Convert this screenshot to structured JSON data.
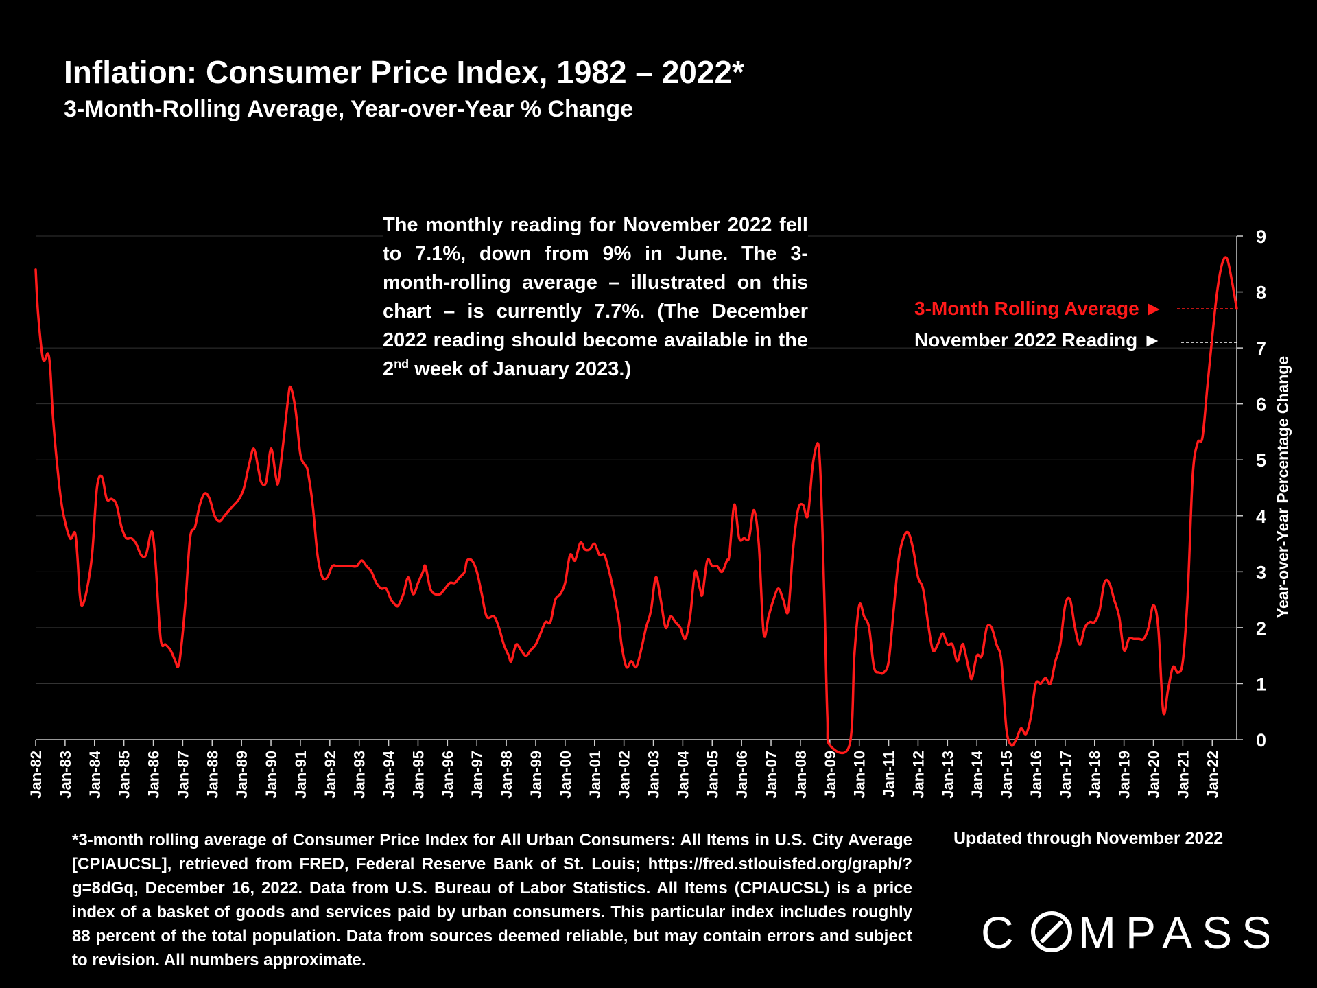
{
  "title": "Inflation: Consumer Price Index, 1982 – 2022*",
  "subtitle": "3-Month-Rolling Average, Year-over-Year % Change",
  "annotation": {
    "part1": "The monthly reading for November 2022 fell to 7.1%, down from 9% in June. The 3-month-rolling average – illustrated on this chart – is currently 7.7%. (The December 2022 reading should become available in the 2",
    "sup": "nd",
    "part2": " week of January 2023.)"
  },
  "legend": {
    "series_label": "3-Month Rolling Average ►",
    "reading_label": "November 2022 Reading ►"
  },
  "footnote": "*3-month rolling average of Consumer Price Index for All Urban Consumers: All Items in U.S. City Average [CPIAUCSL], retrieved from FRED, Federal Reserve Bank of St. Louis; https://fred.stlouisfed.org/graph/?g=8dGq, December 16, 2022. Data from U.S. Bureau of Labor Statistics. All Items (CPIAUCSL) is a price index of a basket of goods and services paid by urban consumers. This particular index includes roughly 88 percent of the total population. Data from sources deemed reliable, but may contain errors and subject to revision. All numbers approximate.",
  "updated": "Updated through November 2022",
  "logo_text": "COMPASS",
  "colors": {
    "series": "#ff1a1a",
    "background": "#000000",
    "text": "#ffffff",
    "grid": "#333333"
  },
  "chart_data": {
    "type": "line",
    "title": "Inflation: Consumer Price Index, 1982 – 2022*",
    "ylabel": "Year-over-Year Percentage Change",
    "xlabel": "",
    "ylim": [
      0,
      9
    ],
    "yticks": [
      "0",
      "1",
      "2",
      "3",
      "4",
      "5",
      "6",
      "7",
      "8",
      "9"
    ],
    "y_axis_side": "right",
    "grid": true,
    "x_start": "Jan-82",
    "x_end": "Nov-22",
    "x_ticks": [
      "Jan-82",
      "Jan-83",
      "Jan-84",
      "Jan-85",
      "Jan-86",
      "Jan-87",
      "Jan-88",
      "Jan-89",
      "Jan-90",
      "Jan-91",
      "Jan-92",
      "Jan-93",
      "Jan-94",
      "Jan-95",
      "Jan-96",
      "Jan-97",
      "Jan-98",
      "Jan-99",
      "Jan-00",
      "Jan-01",
      "Jan-02",
      "Jan-03",
      "Jan-04",
      "Jan-05",
      "Jan-06",
      "Jan-07",
      "Jan-08",
      "Jan-09",
      "Jan-10",
      "Jan-11",
      "Jan-12",
      "Jan-13",
      "Jan-14",
      "Jan-15",
      "Jan-16",
      "Jan-17",
      "Jan-18",
      "Jan-19",
      "Jan-20",
      "Jan-21",
      "Jan-22"
    ],
    "series": [
      {
        "name": "3-Month Rolling Average",
        "color": "#ff1a1a",
        "points": [
          [
            "Jan-82",
            8.4
          ],
          [
            "Feb-82",
            7.6
          ],
          [
            "Apr-82",
            6.8
          ],
          [
            "Jun-82",
            6.9
          ],
          [
            "Jul-82",
            6.6
          ],
          [
            "Aug-82",
            5.8
          ],
          [
            "Oct-82",
            4.8
          ],
          [
            "Dec-82",
            4.1
          ],
          [
            "Mar-83",
            3.6
          ],
          [
            "May-83",
            3.7
          ],
          [
            "Jun-83",
            3.3
          ],
          [
            "Jul-83",
            2.6
          ],
          [
            "Aug-83",
            2.4
          ],
          [
            "Oct-83",
            2.7
          ],
          [
            "Dec-83",
            3.3
          ],
          [
            "Feb-84",
            4.5
          ],
          [
            "Apr-84",
            4.7
          ],
          [
            "Jun-84",
            4.3
          ],
          [
            "Aug-84",
            4.3
          ],
          [
            "Oct-84",
            4.2
          ],
          [
            "Dec-84",
            3.8
          ],
          [
            "Feb-85",
            3.6
          ],
          [
            "Apr-85",
            3.6
          ],
          [
            "Jun-85",
            3.5
          ],
          [
            "Aug-85",
            3.3
          ],
          [
            "Oct-85",
            3.3
          ],
          [
            "Dec-85",
            3.7
          ],
          [
            "Jan-86",
            3.6
          ],
          [
            "Feb-86",
            3.1
          ],
          [
            "Apr-86",
            1.8
          ],
          [
            "Jun-86",
            1.7
          ],
          [
            "Aug-86",
            1.6
          ],
          [
            "Oct-86",
            1.4
          ],
          [
            "Nov-86",
            1.3
          ],
          [
            "Dec-86",
            1.5
          ],
          [
            "Feb-87",
            2.4
          ],
          [
            "Apr-87",
            3.6
          ],
          [
            "Jun-87",
            3.8
          ],
          [
            "Aug-87",
            4.2
          ],
          [
            "Oct-87",
            4.4
          ],
          [
            "Dec-87",
            4.3
          ],
          [
            "Feb-88",
            4.0
          ],
          [
            "Apr-88",
            3.9
          ],
          [
            "Jun-88",
            4.0
          ],
          [
            "Aug-88",
            4.1
          ],
          [
            "Oct-88",
            4.2
          ],
          [
            "Dec-88",
            4.3
          ],
          [
            "Feb-89",
            4.5
          ],
          [
            "Apr-89",
            4.9
          ],
          [
            "Jun-89",
            5.2
          ],
          [
            "Aug-89",
            4.8
          ],
          [
            "Sep-89",
            4.6
          ],
          [
            "Nov-89",
            4.6
          ],
          [
            "Jan-90",
            5.2
          ],
          [
            "Mar-90",
            4.7
          ],
          [
            "Apr-90",
            4.6
          ],
          [
            "Jun-90",
            5.3
          ],
          [
            "Aug-90",
            6.1
          ],
          [
            "Sep-90",
            6.3
          ],
          [
            "Nov-90",
            5.9
          ],
          [
            "Jan-91",
            5.1
          ],
          [
            "Mar-91",
            4.9
          ],
          [
            "Apr-91",
            4.8
          ],
          [
            "Jun-91",
            4.2
          ],
          [
            "Aug-91",
            3.3
          ],
          [
            "Oct-91",
            2.9
          ],
          [
            "Dec-91",
            2.9
          ],
          [
            "Feb-92",
            3.1
          ],
          [
            "Apr-92",
            3.1
          ],
          [
            "Jun-92",
            3.1
          ],
          [
            "Aug-92",
            3.1
          ],
          [
            "Oct-92",
            3.1
          ],
          [
            "Dec-92",
            3.1
          ],
          [
            "Feb-93",
            3.2
          ],
          [
            "Apr-93",
            3.1
          ],
          [
            "Jun-93",
            3.0
          ],
          [
            "Aug-93",
            2.8
          ],
          [
            "Oct-93",
            2.7
          ],
          [
            "Dec-93",
            2.7
          ],
          [
            "Feb-94",
            2.5
          ],
          [
            "Apr-94",
            2.4
          ],
          [
            "May-94",
            2.4
          ],
          [
            "Jul-94",
            2.6
          ],
          [
            "Sep-94",
            2.9
          ],
          [
            "Nov-94",
            2.6
          ],
          [
            "Jan-95",
            2.8
          ],
          [
            "Mar-95",
            3.0
          ],
          [
            "Apr-95",
            3.1
          ],
          [
            "Jun-95",
            2.7
          ],
          [
            "Aug-95",
            2.6
          ],
          [
            "Oct-95",
            2.6
          ],
          [
            "Dec-95",
            2.7
          ],
          [
            "Feb-96",
            2.8
          ],
          [
            "Apr-96",
            2.8
          ],
          [
            "Jun-96",
            2.9
          ],
          [
            "Aug-96",
            3.0
          ],
          [
            "Sep-96",
            3.2
          ],
          [
            "Nov-96",
            3.2
          ],
          [
            "Jan-97",
            3.0
          ],
          [
            "Mar-97",
            2.6
          ],
          [
            "May-97",
            2.2
          ],
          [
            "Aug-97",
            2.2
          ],
          [
            "Oct-97",
            2.0
          ],
          [
            "Dec-97",
            1.7
          ],
          [
            "Feb-98",
            1.5
          ],
          [
            "Mar-98",
            1.4
          ],
          [
            "May-98",
            1.7
          ],
          [
            "Jul-98",
            1.6
          ],
          [
            "Sep-98",
            1.5
          ],
          [
            "Nov-98",
            1.6
          ],
          [
            "Jan-99",
            1.7
          ],
          [
            "Mar-99",
            1.9
          ],
          [
            "May-99",
            2.1
          ],
          [
            "Jul-99",
            2.1
          ],
          [
            "Sep-99",
            2.5
          ],
          [
            "Nov-99",
            2.6
          ],
          [
            "Jan-00",
            2.8
          ],
          [
            "Mar-00",
            3.3
          ],
          [
            "May-00",
            3.2
          ],
          [
            "Jul-00",
            3.5
          ],
          [
            "Aug-00",
            3.5
          ],
          [
            "Sep-00",
            3.4
          ],
          [
            "Nov-00",
            3.4
          ],
          [
            "Jan-01",
            3.5
          ],
          [
            "Mar-01",
            3.3
          ],
          [
            "May-01",
            3.3
          ],
          [
            "Jul-01",
            3.0
          ],
          [
            "Sep-01",
            2.6
          ],
          [
            "Nov-01",
            2.1
          ],
          [
            "Dec-01",
            1.7
          ],
          [
            "Feb-02",
            1.3
          ],
          [
            "Apr-02",
            1.4
          ],
          [
            "Jun-02",
            1.3
          ],
          [
            "Aug-02",
            1.6
          ],
          [
            "Oct-02",
            2.0
          ],
          [
            "Dec-02",
            2.3
          ],
          [
            "Feb-03",
            2.9
          ],
          [
            "Apr-03",
            2.5
          ],
          [
            "Jun-03",
            2.0
          ],
          [
            "Aug-03",
            2.2
          ],
          [
            "Oct-03",
            2.1
          ],
          [
            "Dec-03",
            2.0
          ],
          [
            "Feb-04",
            1.8
          ],
          [
            "Apr-04",
            2.2
          ],
          [
            "Jun-04",
            3.0
          ],
          [
            "Aug-04",
            2.7
          ],
          [
            "Sep-04",
            2.6
          ],
          [
            "Nov-04",
            3.2
          ],
          [
            "Jan-05",
            3.1
          ],
          [
            "Mar-05",
            3.1
          ],
          [
            "May-05",
            3.0
          ],
          [
            "Jul-05",
            3.2
          ],
          [
            "Aug-05",
            3.3
          ],
          [
            "Oct-05",
            4.2
          ],
          [
            "Dec-05",
            3.6
          ],
          [
            "Feb-06",
            3.6
          ],
          [
            "Apr-06",
            3.6
          ],
          [
            "Jun-06",
            4.1
          ],
          [
            "Aug-06",
            3.5
          ],
          [
            "Oct-06",
            1.9
          ],
          [
            "Dec-06",
            2.2
          ],
          [
            "Feb-07",
            2.5
          ],
          [
            "Apr-07",
            2.7
          ],
          [
            "Jun-07",
            2.5
          ],
          [
            "Aug-07",
            2.3
          ],
          [
            "Oct-07",
            3.4
          ],
          [
            "Dec-07",
            4.1
          ],
          [
            "Feb-08",
            4.2
          ],
          [
            "Apr-08",
            4.0
          ],
          [
            "Jun-08",
            4.9
          ],
          [
            "Aug-08",
            5.3
          ],
          [
            "Sep-08",
            4.9
          ],
          [
            "Oct-08",
            3.7
          ],
          [
            "Nov-08",
            2.1
          ],
          [
            "Dec-08",
            0.4
          ],
          [
            "Jan-09",
            -0.1
          ],
          [
            "Sep-09",
            -0.1
          ],
          [
            "Nov-09",
            1.5
          ],
          [
            "Jan-10",
            2.4
          ],
          [
            "Mar-10",
            2.2
          ],
          [
            "May-10",
            2.0
          ],
          [
            "Jul-10",
            1.3
          ],
          [
            "Sep-10",
            1.2
          ],
          [
            "Nov-10",
            1.2
          ],
          [
            "Jan-11",
            1.4
          ],
          [
            "Mar-11",
            2.3
          ],
          [
            "May-11",
            3.2
          ],
          [
            "Jul-11",
            3.6
          ],
          [
            "Sep-11",
            3.7
          ],
          [
            "Nov-11",
            3.4
          ],
          [
            "Jan-12",
            2.9
          ],
          [
            "Mar-12",
            2.7
          ],
          [
            "May-12",
            2.1
          ],
          [
            "Jul-12",
            1.6
          ],
          [
            "Sep-12",
            1.7
          ],
          [
            "Nov-12",
            1.9
          ],
          [
            "Jan-13",
            1.7
          ],
          [
            "Mar-13",
            1.7
          ],
          [
            "May-13",
            1.4
          ],
          [
            "Jul-13",
            1.7
          ],
          [
            "Aug-13",
            1.6
          ],
          [
            "Oct-13",
            1.2
          ],
          [
            "Nov-13",
            1.1
          ],
          [
            "Jan-14",
            1.5
          ],
          [
            "Mar-14",
            1.5
          ],
          [
            "May-14",
            2.0
          ],
          [
            "Jul-14",
            2.0
          ],
          [
            "Sep-14",
            1.7
          ],
          [
            "Nov-14",
            1.4
          ],
          [
            "Jan-15",
            0.2
          ],
          [
            "Mar-15",
            -0.1
          ],
          [
            "May-15",
            0.0
          ],
          [
            "Jul-15",
            0.2
          ],
          [
            "Sep-15",
            0.1
          ],
          [
            "Nov-15",
            0.4
          ],
          [
            "Jan-16",
            1.0
          ],
          [
            "Mar-16",
            1.0
          ],
          [
            "May-16",
            1.1
          ],
          [
            "Jul-16",
            1.0
          ],
          [
            "Sep-16",
            1.4
          ],
          [
            "Nov-16",
            1.7
          ],
          [
            "Jan-17",
            2.4
          ],
          [
            "Mar-17",
            2.5
          ],
          [
            "May-17",
            2.0
          ],
          [
            "Jul-17",
            1.7
          ],
          [
            "Sep-17",
            2.0
          ],
          [
            "Nov-17",
            2.1
          ],
          [
            "Jan-18",
            2.1
          ],
          [
            "Mar-18",
            2.3
          ],
          [
            "May-18",
            2.8
          ],
          [
            "Jul-18",
            2.8
          ],
          [
            "Sep-18",
            2.5
          ],
          [
            "Nov-18",
            2.2
          ],
          [
            "Jan-19",
            1.6
          ],
          [
            "Mar-19",
            1.8
          ],
          [
            "May-19",
            1.8
          ],
          [
            "Jul-19",
            1.8
          ],
          [
            "Sep-19",
            1.8
          ],
          [
            "Nov-19",
            2.0
          ],
          [
            "Jan-20",
            2.4
          ],
          [
            "Mar-20",
            2.0
          ],
          [
            "May-20",
            0.5
          ],
          [
            "Jul-20",
            0.9
          ],
          [
            "Sep-20",
            1.3
          ],
          [
            "Nov-20",
            1.2
          ],
          [
            "Jan-21",
            1.4
          ],
          [
            "Mar-21",
            2.6
          ],
          [
            "May-21",
            4.7
          ],
          [
            "Jul-21",
            5.3
          ],
          [
            "Sep-21",
            5.4
          ],
          [
            "Nov-21",
            6.3
          ],
          [
            "Jan-22",
            7.2
          ],
          [
            "Mar-22",
            8.0
          ],
          [
            "May-22",
            8.5
          ],
          [
            "Jul-22",
            8.6
          ],
          [
            "Sep-22",
            8.2
          ],
          [
            "Nov-22",
            7.7
          ]
        ]
      }
    ],
    "reference_lines": [
      {
        "label": "3-Month Rolling Average ►",
        "value": 7.7,
        "color": "#ff1a1a",
        "style": "dashed"
      },
      {
        "label": "November 2022 Reading ►",
        "value": 7.1,
        "color": "#ffffff",
        "style": "dashed"
      }
    ]
  }
}
